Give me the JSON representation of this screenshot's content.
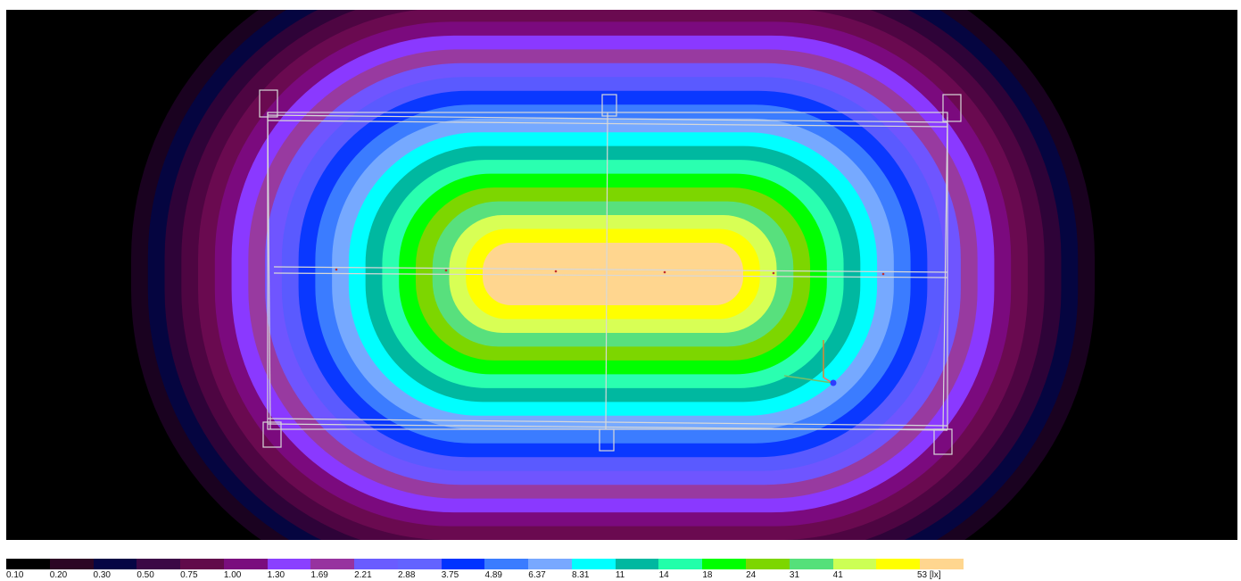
{
  "viewport": {
    "name": "illuminance-contour-view",
    "background": "#000000"
  },
  "legend": {
    "unit_label": "53 [lx]",
    "ticks": [
      "0.10",
      "0.20",
      "0.30",
      "0.50",
      "0.75",
      "1.00",
      "1.30",
      "1.69",
      "2.21",
      "2.88",
      "3.75",
      "4.89",
      "6.37",
      "8.31",
      "11",
      "14",
      "18",
      "24",
      "31",
      "41"
    ],
    "colors": [
      "#000000",
      "#2c0524",
      "#050544",
      "#3b0846",
      "#610a4a",
      "#7a0d7e",
      "#8a40ff",
      "#97339f",
      "#6a5cff",
      "#6363ff",
      "#0033ff",
      "#3a7cff",
      "#78a8ff",
      "#00ffff",
      "#00b8a0",
      "#22ffaa",
      "#00ff00",
      "#7dd600",
      "#55e07a",
      "#ccff55",
      "#ffff00",
      "#ffd68f"
    ]
  },
  "contours": {
    "colors_outer_to_inner": [
      "#1a0220",
      "#050540",
      "#2e0338",
      "#4e0542",
      "#6a0a50",
      "#7b0a7e",
      "#8a39ff",
      "#983aa0",
      "#6f55ff",
      "#5a5aff",
      "#0a38ff",
      "#3b7cff",
      "#76a9ff",
      "#00ffff",
      "#00b8a0",
      "#2affb0",
      "#00ff00",
      "#7dd600",
      "#58e07d",
      "#d8ff55",
      "#ffff00",
      "#ffd68f"
    ]
  },
  "axes_gizmo": {
    "x_color": "#d08a3a",
    "y_color": "#74c06a",
    "z_color": "#ff6a6a",
    "origin_color": "#2d3cff"
  }
}
